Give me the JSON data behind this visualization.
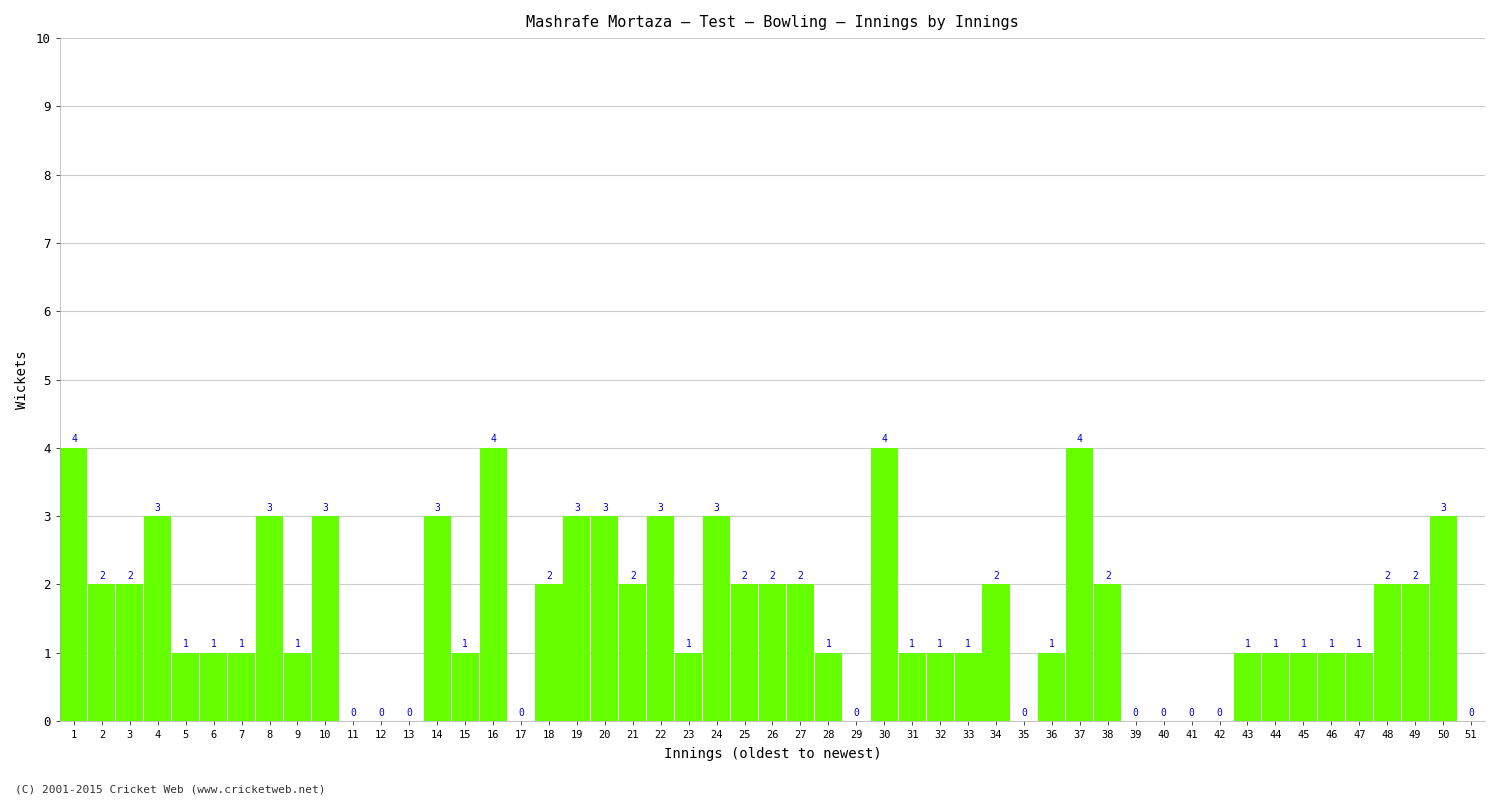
{
  "title": "Mashrafe Mortaza – Test – Bowling – Innings by Innings",
  "xlabel": "Innings (oldest to newest)",
  "ylabel": "Wickets",
  "ylim": [
    0,
    10
  ],
  "yticks": [
    0,
    1,
    2,
    3,
    4,
    5,
    6,
    7,
    8,
    9,
    10
  ],
  "bar_color": "#66ff00",
  "label_color": "#0000cc",
  "background_color": "#ffffff",
  "grid_color": "#cccccc",
  "footer": "(C) 2001-2015 Cricket Web (www.cricketweb.net)",
  "innings": [
    1,
    2,
    3,
    4,
    5,
    6,
    7,
    8,
    9,
    10,
    11,
    12,
    13,
    14,
    15,
    16,
    17,
    18,
    19,
    20,
    21,
    22,
    23,
    24,
    25,
    26,
    27,
    28,
    29,
    30,
    31,
    32,
    33,
    34,
    35,
    36,
    37,
    38,
    39,
    40,
    41,
    42,
    43,
    44,
    45,
    46,
    47,
    48,
    49,
    50,
    51
  ],
  "wickets": [
    4,
    2,
    2,
    3,
    1,
    1,
    1,
    3,
    1,
    3,
    0,
    0,
    0,
    3,
    1,
    4,
    0,
    2,
    3,
    3,
    2,
    3,
    1,
    3,
    2,
    2,
    2,
    1,
    0,
    4,
    1,
    1,
    1,
    2,
    0,
    1,
    4,
    2,
    0,
    0,
    0,
    0,
    1,
    1,
    1,
    1,
    1,
    2,
    2,
    3,
    0
  ]
}
